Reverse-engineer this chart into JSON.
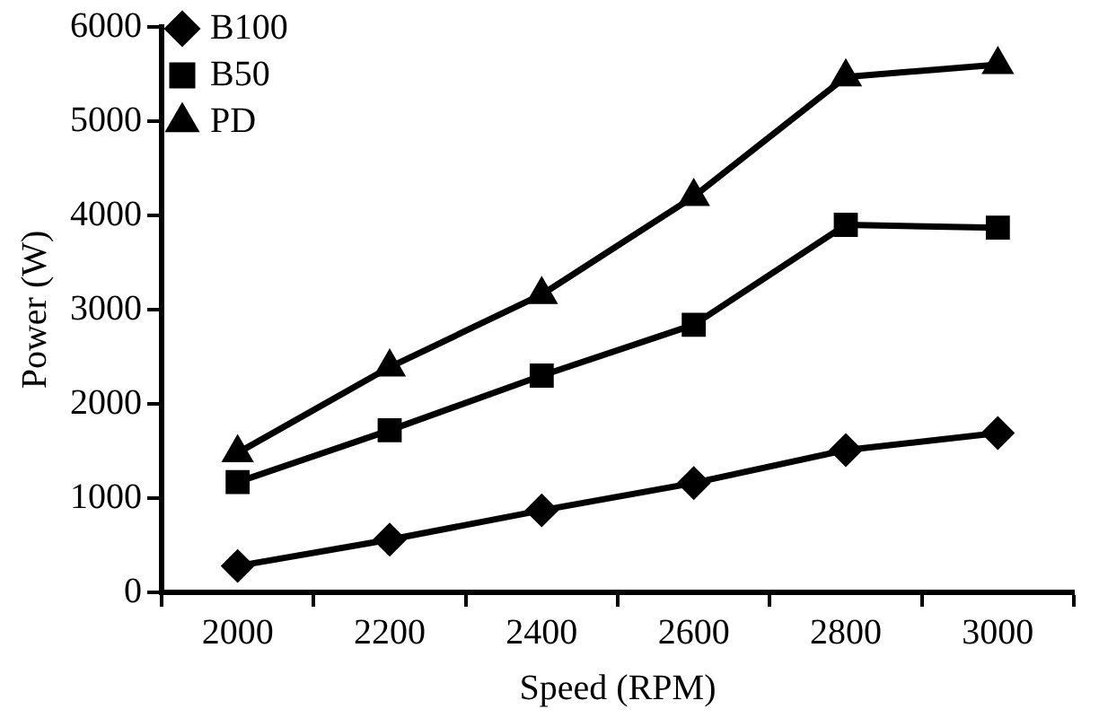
{
  "chart_data": {
    "type": "line",
    "xlabel": "Speed (RPM)",
    "ylabel": "Power (W)",
    "categories": [
      "2000",
      "2200",
      "2400",
      "2600",
      "2800",
      "3000"
    ],
    "series": [
      {
        "name": "B100",
        "color": "#000000",
        "marker": "diamond",
        "values": [
          280,
          560,
          870,
          1160,
          1510,
          1690
        ]
      },
      {
        "name": "B50",
        "color": "#000000",
        "marker": "square",
        "values": [
          1170,
          1720,
          2300,
          2840,
          3900,
          3870
        ]
      },
      {
        "name": "PD",
        "color": "#000000",
        "marker": "triangle",
        "values": [
          1480,
          2390,
          3160,
          4200,
          5470,
          5600
        ]
      }
    ],
    "ylim": [
      0,
      6000
    ],
    "yticks": [
      0,
      1000,
      2000,
      3000,
      4000,
      5000,
      6000
    ],
    "grid": false,
    "legend": "top left",
    "line_style": "solid"
  }
}
